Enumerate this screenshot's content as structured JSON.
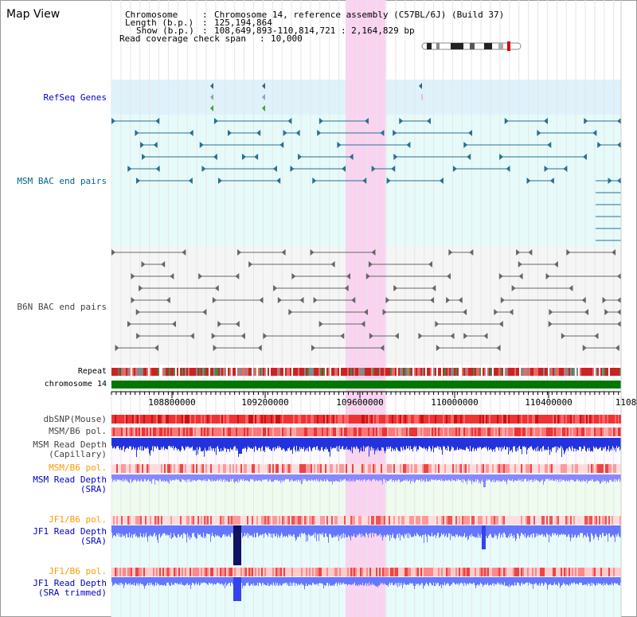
{
  "view": {
    "title": "Map View"
  },
  "info": {
    "chromosome_key": "Chromosome",
    "chromosome_value": "Chromosome 14, reference assembly (C57BL/6J) (Build 37)",
    "length_key": "Length (b.p.)",
    "length_value": "125,194,864",
    "show_key": "Show (b.p.)",
    "show_value": "108,649,893-110,814,721 : 2,164,829 bp",
    "coverage_key": "Read coverage check span",
    "coverage_value": "10,000"
  },
  "tracks": {
    "refseq": "RefSeq Genes",
    "msm_bac": "MSM BAC end pairs",
    "b6n_bac": "B6N BAC end pairs",
    "repeat": "Repeat",
    "chromosome": "chromosome 14",
    "dbsnp": "dbSNP(Mouse)",
    "msm_b6_pol_1": "MSM/B6 pol.",
    "msm_depth_cap_1": "MSM Read Depth",
    "msm_depth_cap_2": "(Capillary)",
    "msm_b6_pol_2": "MSM/B6 pol.",
    "msm_depth_sra_1": "MSM Read Depth",
    "msm_depth_sra_2": "(SRA)",
    "jf1_pol_1": "JF1/B6 pol.",
    "jf1_depth_1": "JF1 Read Depth",
    "jf1_depth_2": "(SRA)",
    "jf1_pol_2": "JF1/B6 pol.",
    "jf1_trim_1": "JF1 Read Depth",
    "jf1_trim_2": "(SRA trimmed)"
  },
  "axis": {
    "ticks": [
      "108800000",
      "109200000",
      "109600000",
      "110000000",
      "110400000",
      "1108"
    ]
  },
  "colors": {
    "label_blue": "#0000cc",
    "label_teal": "#006688",
    "label_orange": "#ff9900",
    "label_gray": "#444444",
    "highlight": "#f9d3f0",
    "refseq_band": "#dff2fb",
    "msm_band": "#e6fafa",
    "b6n_band": "#f5f5f5",
    "chromosome_bar": "#007700"
  }
}
